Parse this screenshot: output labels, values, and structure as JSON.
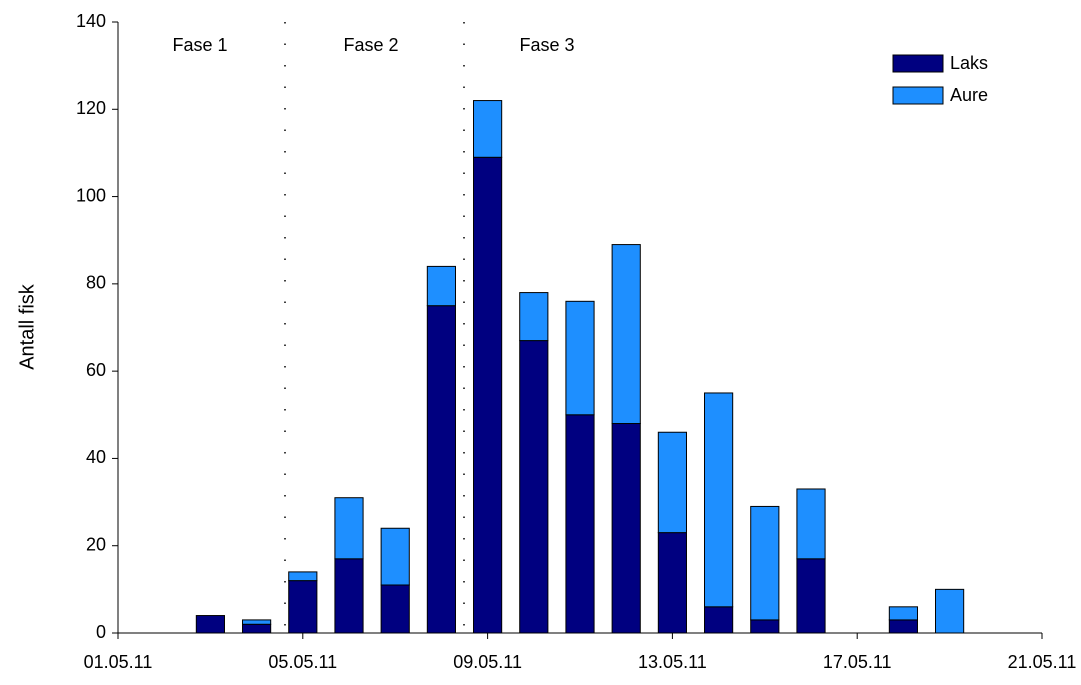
{
  "chart_data": {
    "type": "bar",
    "stacked": true,
    "y_label": "Antall fisk",
    "annotations": [
      "Fase 1",
      "Fase 2",
      "Fase 3"
    ],
    "x": [
      "03.05.11",
      "04.05.11",
      "05.05.11",
      "06.05.11",
      "07.05.11",
      "08.05.11",
      "09.05.11",
      "10.05.11",
      "11.05.11",
      "12.05.11",
      "13.05.11",
      "14.05.11",
      "15.05.11",
      "16.05.11",
      "18.05.11",
      "19.05.11"
    ],
    "series": [
      {
        "name": "Laks",
        "color": "#000080",
        "values": [
          4,
          2,
          12,
          17,
          11,
          75,
          109,
          67,
          50,
          48,
          23,
          6,
          3,
          17,
          3,
          0
        ]
      },
      {
        "name": "Aure",
        "color": "#1e8fff",
        "values": [
          0,
          1,
          2,
          14,
          13,
          9,
          13,
          11,
          26,
          41,
          23,
          49,
          26,
          16,
          3,
          10
        ]
      }
    ],
    "xlim": [
      "01.05.11",
      "21.05.11"
    ],
    "xticks": [
      "01.05.11",
      "05.05.11",
      "09.05.11",
      "13.05.11",
      "17.05.11",
      "21.05.11"
    ],
    "ylim": [
      0,
      140
    ],
    "yticks": [
      0,
      20,
      40,
      60,
      80,
      100,
      120,
      140
    ],
    "grid": false,
    "legend": "upper right"
  }
}
